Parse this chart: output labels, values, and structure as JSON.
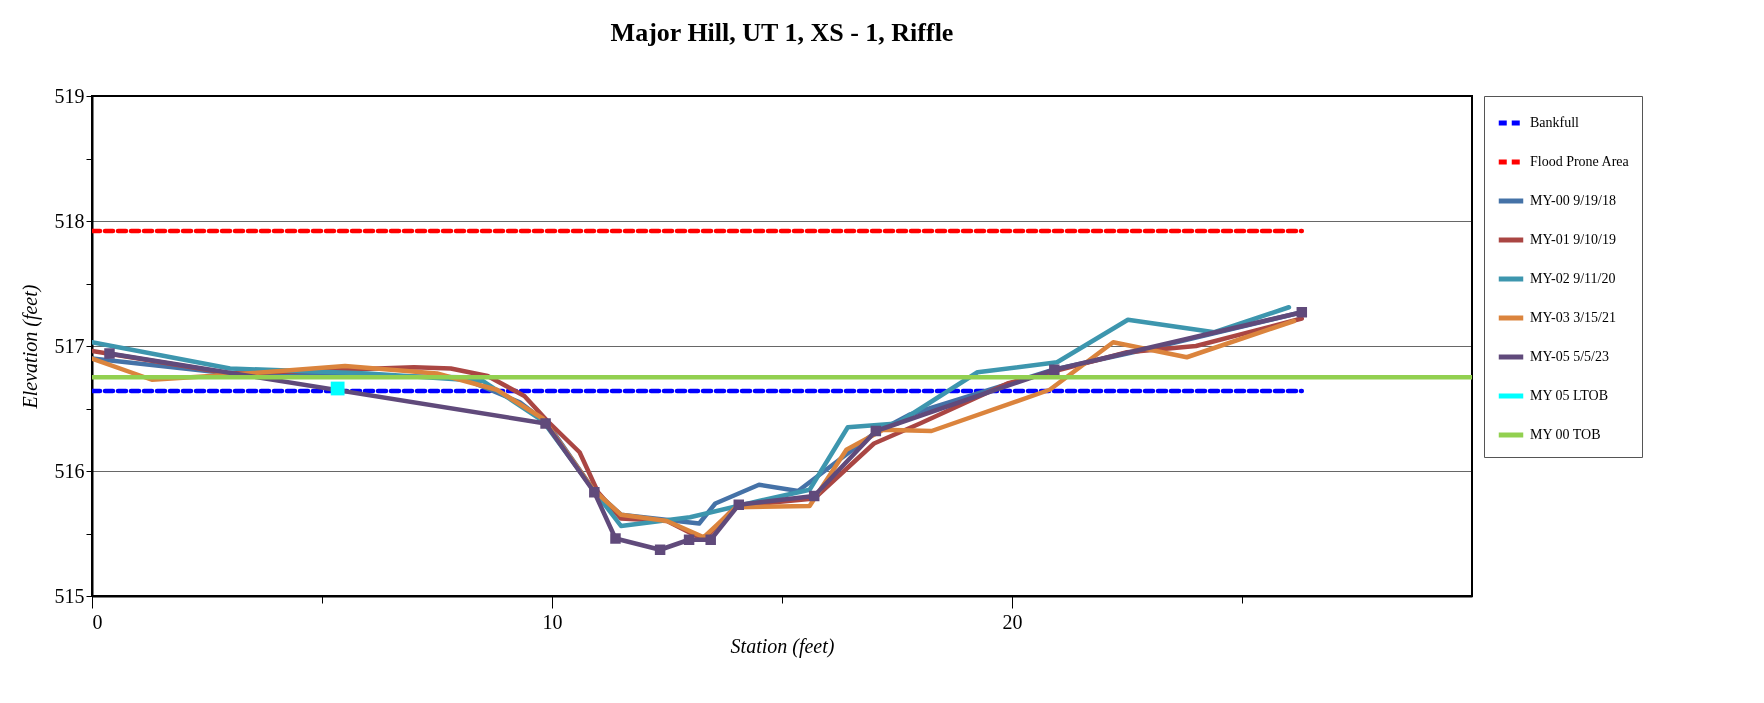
{
  "chart_data": {
    "type": "line",
    "title": "Major Hill, UT 1, XS - 1, Riffle",
    "xlabel": "Station (feet)",
    "ylabel": "Elevation (feet)",
    "xlim": [
      0,
      30
    ],
    "xticks": [
      0,
      {
        "value": 5,
        "label": null
      },
      10,
      {
        "value": 15,
        "label": null
      },
      20,
      {
        "value": 25,
        "label": null
      }
    ],
    "ylim": [
      515,
      519
    ],
    "yticks": [
      515,
      {
        "value": 515.5,
        "label": null
      },
      516,
      {
        "value": 516.5,
        "label": null
      },
      517,
      {
        "value": 517.5,
        "label": null
      },
      518,
      {
        "value": 518.5,
        "label": null
      },
      519
    ],
    "grid": "y",
    "legend": "right",
    "marker": "none",
    "line_style": "solid",
    "series": [
      {
        "name": "Bankfull",
        "color": "#0000ff",
        "line_style": "dashed",
        "x": [
          0,
          26.3
        ],
        "values": [
          516.64,
          516.64
        ]
      },
      {
        "name": "Flood Prone Area",
        "color": "#ff0000",
        "line_style": "dashed",
        "x": [
          0,
          26.3
        ],
        "values": [
          517.92,
          517.92
        ]
      },
      {
        "name": "MY-00 9/19/18",
        "color": "#4572a7",
        "x": [
          0,
          3,
          8,
          9.3,
          9.9,
          10.9,
          11.5,
          13.2,
          13.55,
          14.5,
          15.35,
          17.0,
          17.77,
          20.9,
          23,
          26.3
        ],
        "values": [
          516.9,
          516.78,
          516.75,
          516.55,
          516.38,
          515.85,
          515.65,
          515.58,
          515.74,
          515.89,
          515.84,
          516.3,
          516.45,
          516.81,
          516.98,
          517.27
        ]
      },
      {
        "name": "MY-01 9/10/19",
        "color": "#aa4643",
        "x": [
          0,
          3,
          7,
          7.8,
          8.6,
          9.4,
          9.9,
          10.6,
          11.0,
          11.5,
          12.5,
          13.3,
          14.0,
          15.7,
          17.0,
          18.0,
          19.9,
          22.5,
          24,
          26.3
        ],
        "values": [
          516.96,
          516.78,
          516.83,
          516.82,
          516.76,
          516.6,
          516.4,
          516.15,
          515.83,
          515.62,
          515.6,
          515.45,
          515.72,
          515.78,
          516.22,
          516.38,
          516.7,
          516.95,
          517.0,
          517.22
        ]
      },
      {
        "name": "MY-02 9/11/20",
        "color": "#3d96ae",
        "x": [
          0,
          3,
          6,
          8.5,
          9.8,
          10.9,
          11.5,
          13,
          14.5,
          15.6,
          16.43,
          17.5,
          19.25,
          20.98,
          22.52,
          24.4,
          26.02
        ],
        "values": [
          517.03,
          516.82,
          516.78,
          516.72,
          516.4,
          515.85,
          515.56,
          515.63,
          515.76,
          515.85,
          516.35,
          516.38,
          516.79,
          516.87,
          517.21,
          517.11,
          517.31
        ]
      },
      {
        "name": "MY-03 3/15/21",
        "color": "#db843d",
        "x": [
          0,
          1.3,
          3,
          5.5,
          7.5,
          8.8,
          9.8,
          10.9,
          11.5,
          12.5,
          13.3,
          14,
          15.6,
          16.4,
          17.2,
          18.25,
          20.82,
          22.2,
          23.8,
          26.13
        ],
        "values": [
          516.9,
          516.73,
          516.77,
          516.84,
          516.78,
          516.65,
          516.42,
          515.85,
          515.65,
          515.6,
          515.47,
          515.71,
          515.72,
          516.17,
          516.33,
          516.32,
          516.65,
          517.03,
          516.91,
          517.2
        ]
      },
      {
        "name": "MY-05 5/5/23",
        "color": "#604a7b",
        "marker": "square",
        "x": [
          0.38,
          9.86,
          10.92,
          11.38,
          12.35,
          12.98,
          13.45,
          14.06,
          15.7,
          17.04,
          20.92,
          26.3
        ],
        "values": [
          516.94,
          516.38,
          515.83,
          515.46,
          515.37,
          515.45,
          515.45,
          515.73,
          515.8,
          516.32,
          516.81,
          517.27
        ]
      },
      {
        "name": "MY 05 LTOB",
        "color": "#00ffff",
        "type": "scatter",
        "marker": "square",
        "x": [
          5.34
        ],
        "values": [
          516.66
        ]
      },
      {
        "name": "MY 00 TOB",
        "color": "#92d050",
        "x": [
          0,
          30
        ],
        "values": [
          516.75,
          516.75
        ]
      }
    ]
  }
}
